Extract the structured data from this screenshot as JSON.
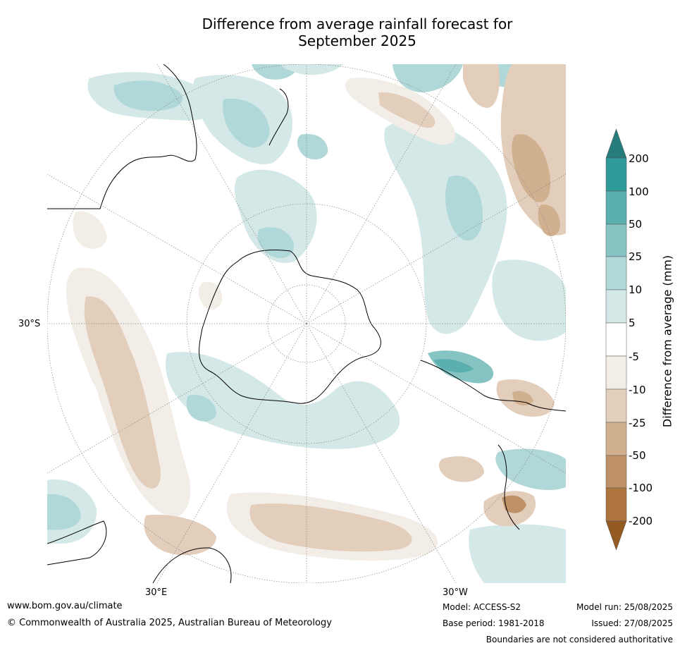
{
  "title_line1": "Difference from average rainfall forecast for",
  "title_line2": "September 2025",
  "map": {
    "projection": "south-polar-stereographic",
    "lat_label": "30°S",
    "lon_labels": [
      "30°E",
      "30°W"
    ],
    "land_color": "#000000",
    "graticule_color": "#888888"
  },
  "colorbar": {
    "label": "Difference from average (mm)",
    "ticks": [
      "200",
      "100",
      "50",
      "25",
      "10",
      "5",
      "-5",
      "-10",
      "-25",
      "-50",
      "-100",
      "-200"
    ],
    "colors": {
      "above_200": "#267b7b",
      "100_200": "#2e9a9a",
      "50_100": "#5bafaf",
      "25_50": "#86c4c4",
      "10_25": "#b1d8d8",
      "5_10": "#d5e8e8",
      "-5_5": "#ffffff",
      "-10_-5": "#f3ede7",
      "-25_-10": "#e3cdbb",
      "-50_-25": "#d1b090",
      "-100_-50": "#be9166",
      "-200_-100": "#ad743e",
      "below_-200": "#935a22"
    }
  },
  "footer": {
    "url": "www.bom.gov.au/climate",
    "copyright": "© Commonwealth of Australia 2025, Australian Bureau of Meteorology",
    "model": "Model: ACCESS-S2",
    "base_period": "Base period: 1981-2018",
    "model_run": "Model run: 25/08/2025",
    "issued": "Issued: 27/08/2025",
    "disclaimer": "Boundaries are not considered authoritative"
  }
}
